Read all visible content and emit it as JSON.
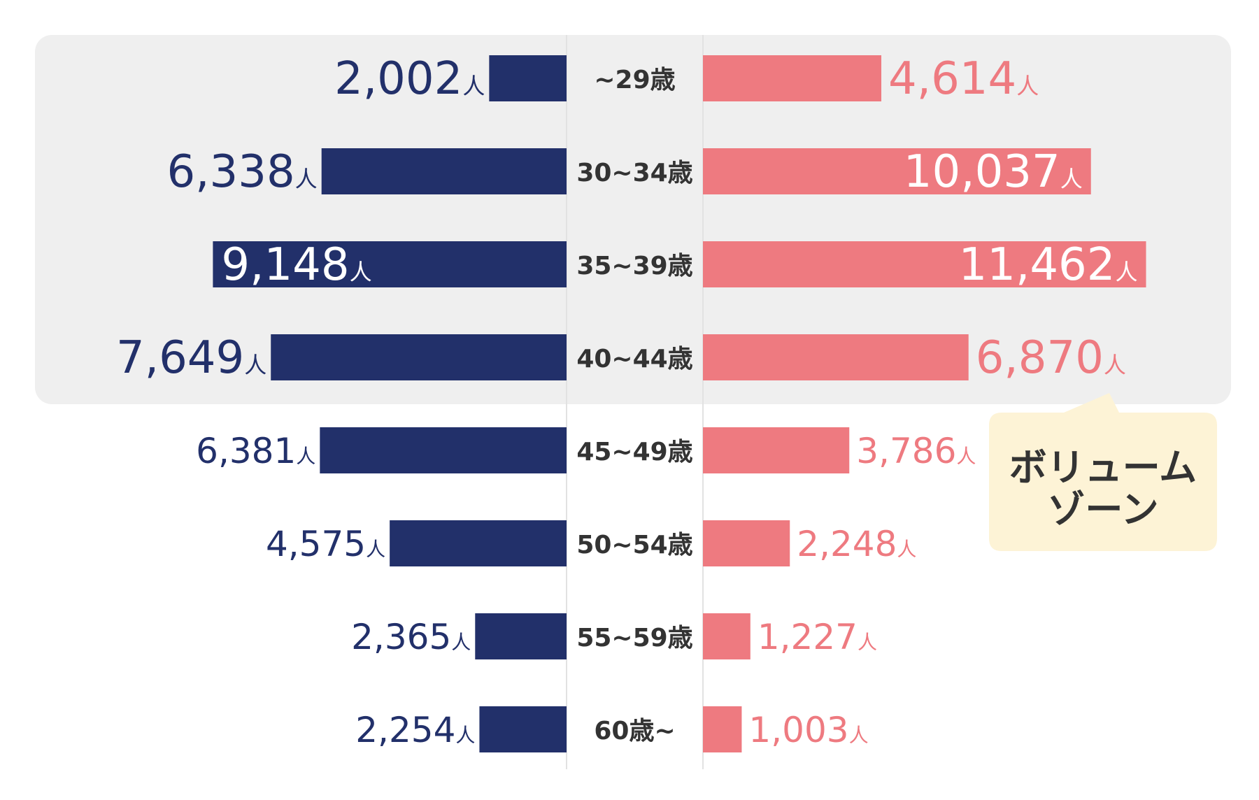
{
  "chart_data": {
    "type": "bar",
    "categories": [
      "~29歳",
      "30~34歳",
      "35~39歳",
      "40~44歳",
      "45~49歳",
      "50~54歳",
      "55~59歳",
      "60歳~"
    ],
    "series": [
      {
        "values": [
          2002,
          6338,
          9148,
          7649,
          6381,
          4575,
          2365,
          2254
        ],
        "labels": [
          "2,002",
          "6,338",
          "9,148",
          "7,649",
          "6,381",
          "4,575",
          "2,365",
          "2,254"
        ]
      },
      {
        "values": [
          4614,
          10037,
          11462,
          6870,
          3786,
          2248,
          1227,
          1003
        ],
        "labels": [
          "4,614",
          "10,037",
          "11,462",
          "6,870",
          "3,786",
          "2,248",
          "1,227",
          "1,003"
        ]
      }
    ],
    "unit": "人",
    "highlight": {
      "category_range": [
        "~29歳",
        "40~44歳"
      ],
      "label_lines": [
        "ボリューム",
        "ゾーン"
      ]
    },
    "colors": {
      "left_series": "#22306a",
      "right_series": "#ee7a80",
      "highlight_bg": "#efefef",
      "callout_bg": "#fdf3d6",
      "age_label": "#333333"
    }
  }
}
